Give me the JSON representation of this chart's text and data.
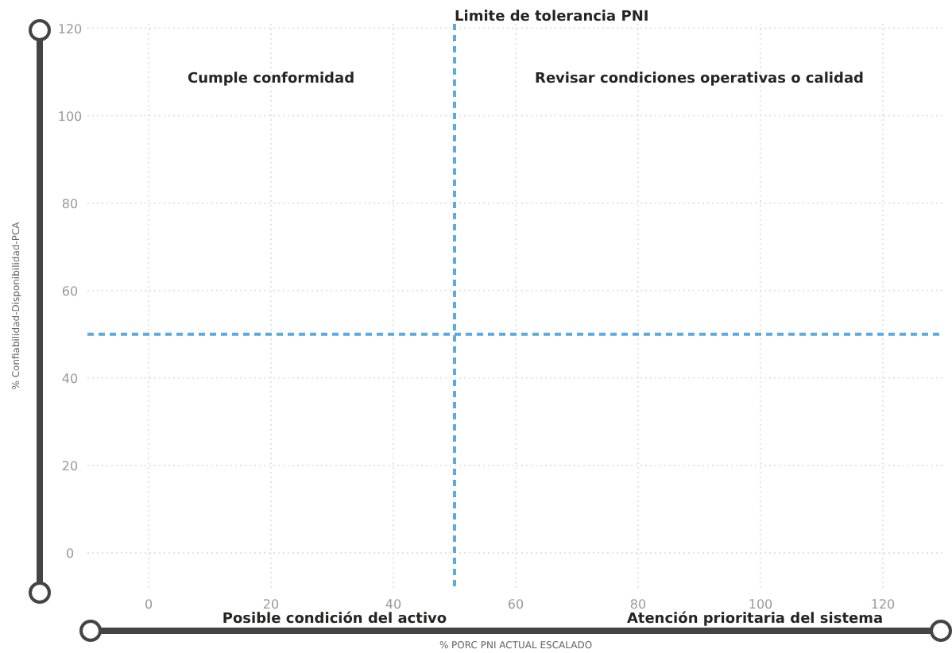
{
  "chart_data": {
    "type": "scatter",
    "xlabel": "% PORC PNI ACTUAL ESCALADO",
    "ylabel": "% Confiabilidad-Disponibilidad-PCA",
    "xlim": [
      -10,
      130
    ],
    "xticks": [
      0,
      20,
      40,
      60,
      80,
      100,
      120
    ],
    "ylim": [
      -8,
      121
    ],
    "yticks": [
      0,
      20,
      40,
      60,
      80,
      100,
      120
    ],
    "grid": true,
    "ref_lines": [
      {
        "axis": "x",
        "value": 50,
        "label": "Limite de tolerancia PNI",
        "color": "#5aaae6",
        "line_style": "dashed"
      },
      {
        "axis": "y",
        "value": 50,
        "label": null,
        "color": "#5aaae6",
        "line_style": "dashed"
      }
    ],
    "annotations": [
      "Cumple conformidad",
      "Revisar condiciones operativas o calidad",
      "Posible condición del activo",
      "Atención prioritaria del sistema"
    ]
  }
}
